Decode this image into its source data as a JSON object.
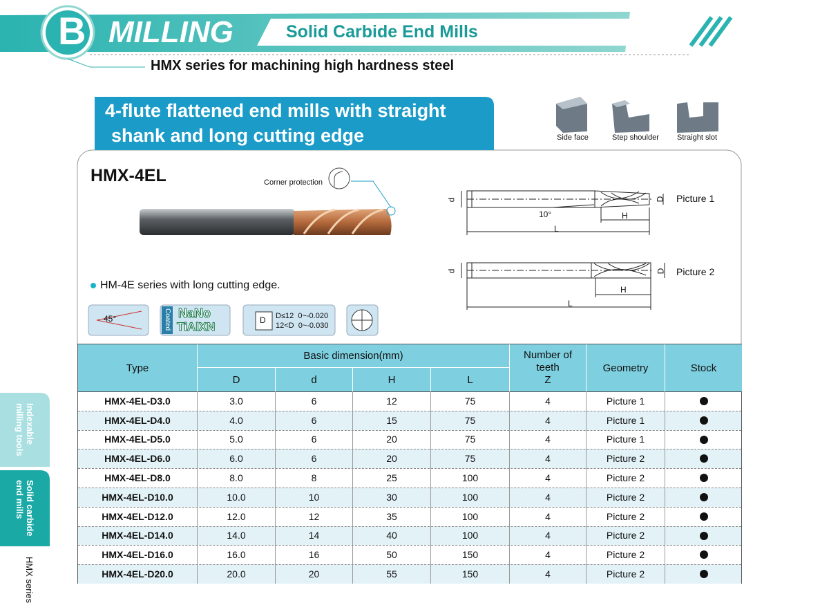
{
  "header": {
    "letter": "B",
    "title": "MILLING",
    "subtitle": "Solid Carbide End Mills",
    "series": "HMX series for machining high hardness steel"
  },
  "product": {
    "heading_line1": "4-flute flattened end mills with straight",
    "heading_line2": "shank and long cutting edge",
    "name": "HMX-4EL",
    "corner_label": "Corner protection",
    "note": "HM-4E series with long cutting edge."
  },
  "applications": [
    "Side face",
    "Step shoulder",
    "Straight slot"
  ],
  "icons": {
    "angle": "45°",
    "coated": "Coated",
    "nano": "NaNo",
    "coating": "TiAlXN",
    "tol_symbol": "D",
    "tol_line1": "D≤12  0~-0.020",
    "tol_line2": "12<D  0~-0.030"
  },
  "drawings": [
    {
      "label": "Picture 1",
      "d": "d",
      "D": "D",
      "H": "H",
      "L": "L",
      "angle": "10°"
    },
    {
      "label": "Picture 2",
      "d": "d",
      "D": "D",
      "H": "H",
      "L": "L"
    }
  ],
  "table": {
    "type": "Type",
    "basic": "Basic dimension(mm)",
    "cols": [
      "D",
      "d",
      "H",
      "L"
    ],
    "teeth": [
      "Number of",
      "teeth",
      "Z"
    ],
    "geometry": "Geometry",
    "stock": "Stock",
    "rows": [
      [
        "HMX-4EL-D3.0",
        "3.0",
        "6",
        "12",
        "75",
        "4",
        "Picture 1"
      ],
      [
        "HMX-4EL-D4.0",
        "4.0",
        "6",
        "15",
        "75",
        "4",
        "Picture 1"
      ],
      [
        "HMX-4EL-D5.0",
        "5.0",
        "6",
        "20",
        "75",
        "4",
        "Picture 1"
      ],
      [
        "HMX-4EL-D6.0",
        "6.0",
        "6",
        "20",
        "75",
        "4",
        "Picture 2"
      ],
      [
        "HMX-4EL-D8.0",
        "8.0",
        "8",
        "25",
        "100",
        "4",
        "Picture 2"
      ],
      [
        "HMX-4EL-D10.0",
        "10.0",
        "10",
        "30",
        "100",
        "4",
        "Picture 2"
      ],
      [
        "HMX-4EL-D12.0",
        "12.0",
        "12",
        "35",
        "100",
        "4",
        "Picture 2"
      ],
      [
        "HMX-4EL-D14.0",
        "14.0",
        "14",
        "40",
        "100",
        "4",
        "Picture 2"
      ],
      [
        "HMX-4EL-D16.0",
        "16.0",
        "16",
        "50",
        "150",
        "4",
        "Picture 2"
      ],
      [
        "HMX-4EL-D20.0",
        "20.0",
        "20",
        "55",
        "150",
        "4",
        "Picture 2"
      ]
    ]
  },
  "side_tabs": [
    [
      "Indexable",
      "milling tools"
    ],
    [
      "Solid carbide",
      "end mills"
    ]
  ],
  "side_label": "HMX series"
}
